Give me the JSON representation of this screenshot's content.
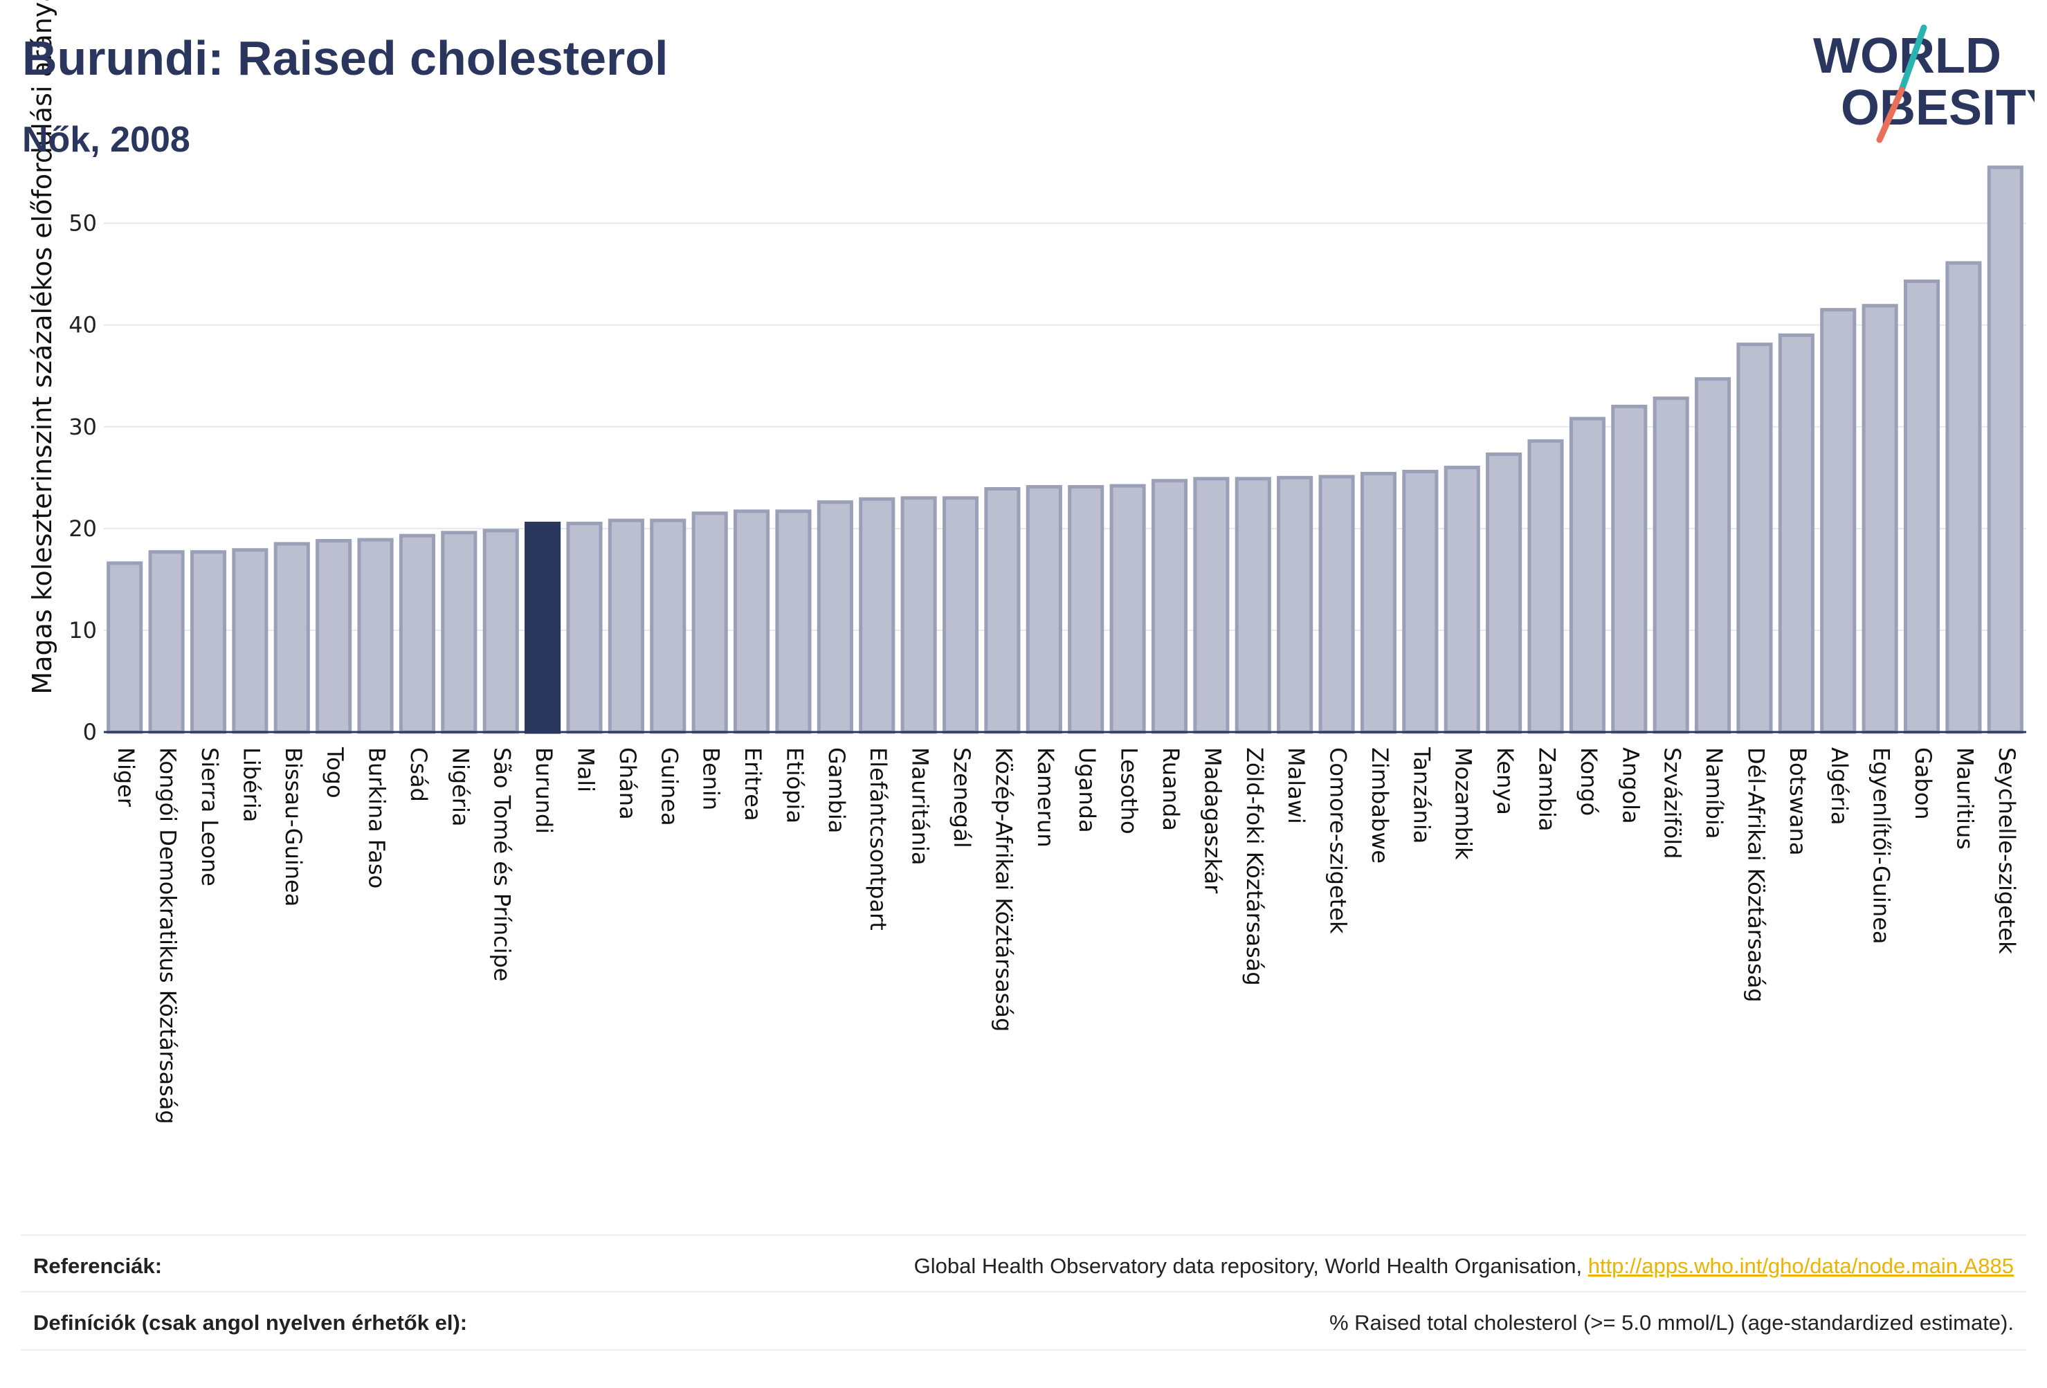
{
  "header": {
    "title": "Burundi: Raised cholesterol",
    "subtitle": "Nők, 2008",
    "logo_top": "WORLD",
    "logo_bottom": "OBESITY"
  },
  "colors": {
    "highlight": "#2b365f",
    "bar_fill": "#bbbfcf",
    "bar_stroke": "#9aa0b8",
    "title": "#2b365f",
    "logo_slash_top": "#2ab3b1",
    "logo_slash_bottom": "#e8705a",
    "link": "#e8b400"
  },
  "chart_data": {
    "type": "bar",
    "title": "Burundi: Raised cholesterol",
    "subtitle": "Nők, 2008",
    "xlabel": "",
    "ylabel": "Magas koleszterinszint százalékos előfordulási aránya",
    "ylim": [
      0,
      58
    ],
    "yticks": [
      0,
      10,
      20,
      30,
      40,
      50
    ],
    "grid": true,
    "highlight": "Burundi",
    "categories": [
      "Niger",
      "Kongói Demokratikus Köztársaság",
      "Sierra Leone",
      "Libéria",
      "Bissau-Guinea",
      "Togo",
      "Burkina Faso",
      "Csád",
      "Nigéria",
      "São Tomé és Príncipe",
      "Burundi",
      "Mali",
      "Ghána",
      "Guinea",
      "Benin",
      "Eritrea",
      "Etiópia",
      "Gambia",
      "Elefántcsontpart",
      "Mauritánia",
      "Szenegál",
      "Közép-Afrikai Köztársaság",
      "Kamerun",
      "Uganda",
      "Lesotho",
      "Ruanda",
      "Madagaszkár",
      "Zöld-foki Köztársaság",
      "Malawi",
      "Comore-szigetek",
      "Zimbabwe",
      "Tanzánia",
      "Mozambik",
      "Kenya",
      "Zambia",
      "Kongó",
      "Angola",
      "Szváziföld",
      "Namíbia",
      "Dél-Afrikai Köztársaság",
      "Botswana",
      "Algéria",
      "Egyenlítői-Guinea",
      "Gabon",
      "Mauritius",
      "Seychelle-szigetek"
    ],
    "values": [
      16.6,
      17.7,
      17.7,
      17.9,
      18.5,
      18.8,
      18.9,
      19.3,
      19.6,
      19.8,
      20.5,
      20.5,
      20.8,
      20.8,
      21.5,
      21.7,
      21.7,
      22.6,
      22.9,
      23.0,
      23.0,
      23.9,
      24.1,
      24.1,
      24.2,
      24.7,
      24.9,
      24.9,
      25.0,
      25.1,
      25.4,
      25.6,
      26.0,
      27.3,
      28.6,
      30.8,
      32.0,
      32.8,
      34.7,
      38.1,
      39.0,
      41.5,
      41.9,
      44.3,
      46.1,
      55.5
    ]
  },
  "footer": {
    "references_label": "Referenciák:",
    "references_text": "Global Health Observatory data repository, World Health Organisation, ",
    "references_link": "http://apps.who.int/gho/data/node.main.A885",
    "definitions_label": "Definíciók (csak angol nyelven érhetők el):",
    "definitions_text": "% Raised total cholesterol (>= 5.0 mmol/L) (age-standardized estimate)."
  }
}
